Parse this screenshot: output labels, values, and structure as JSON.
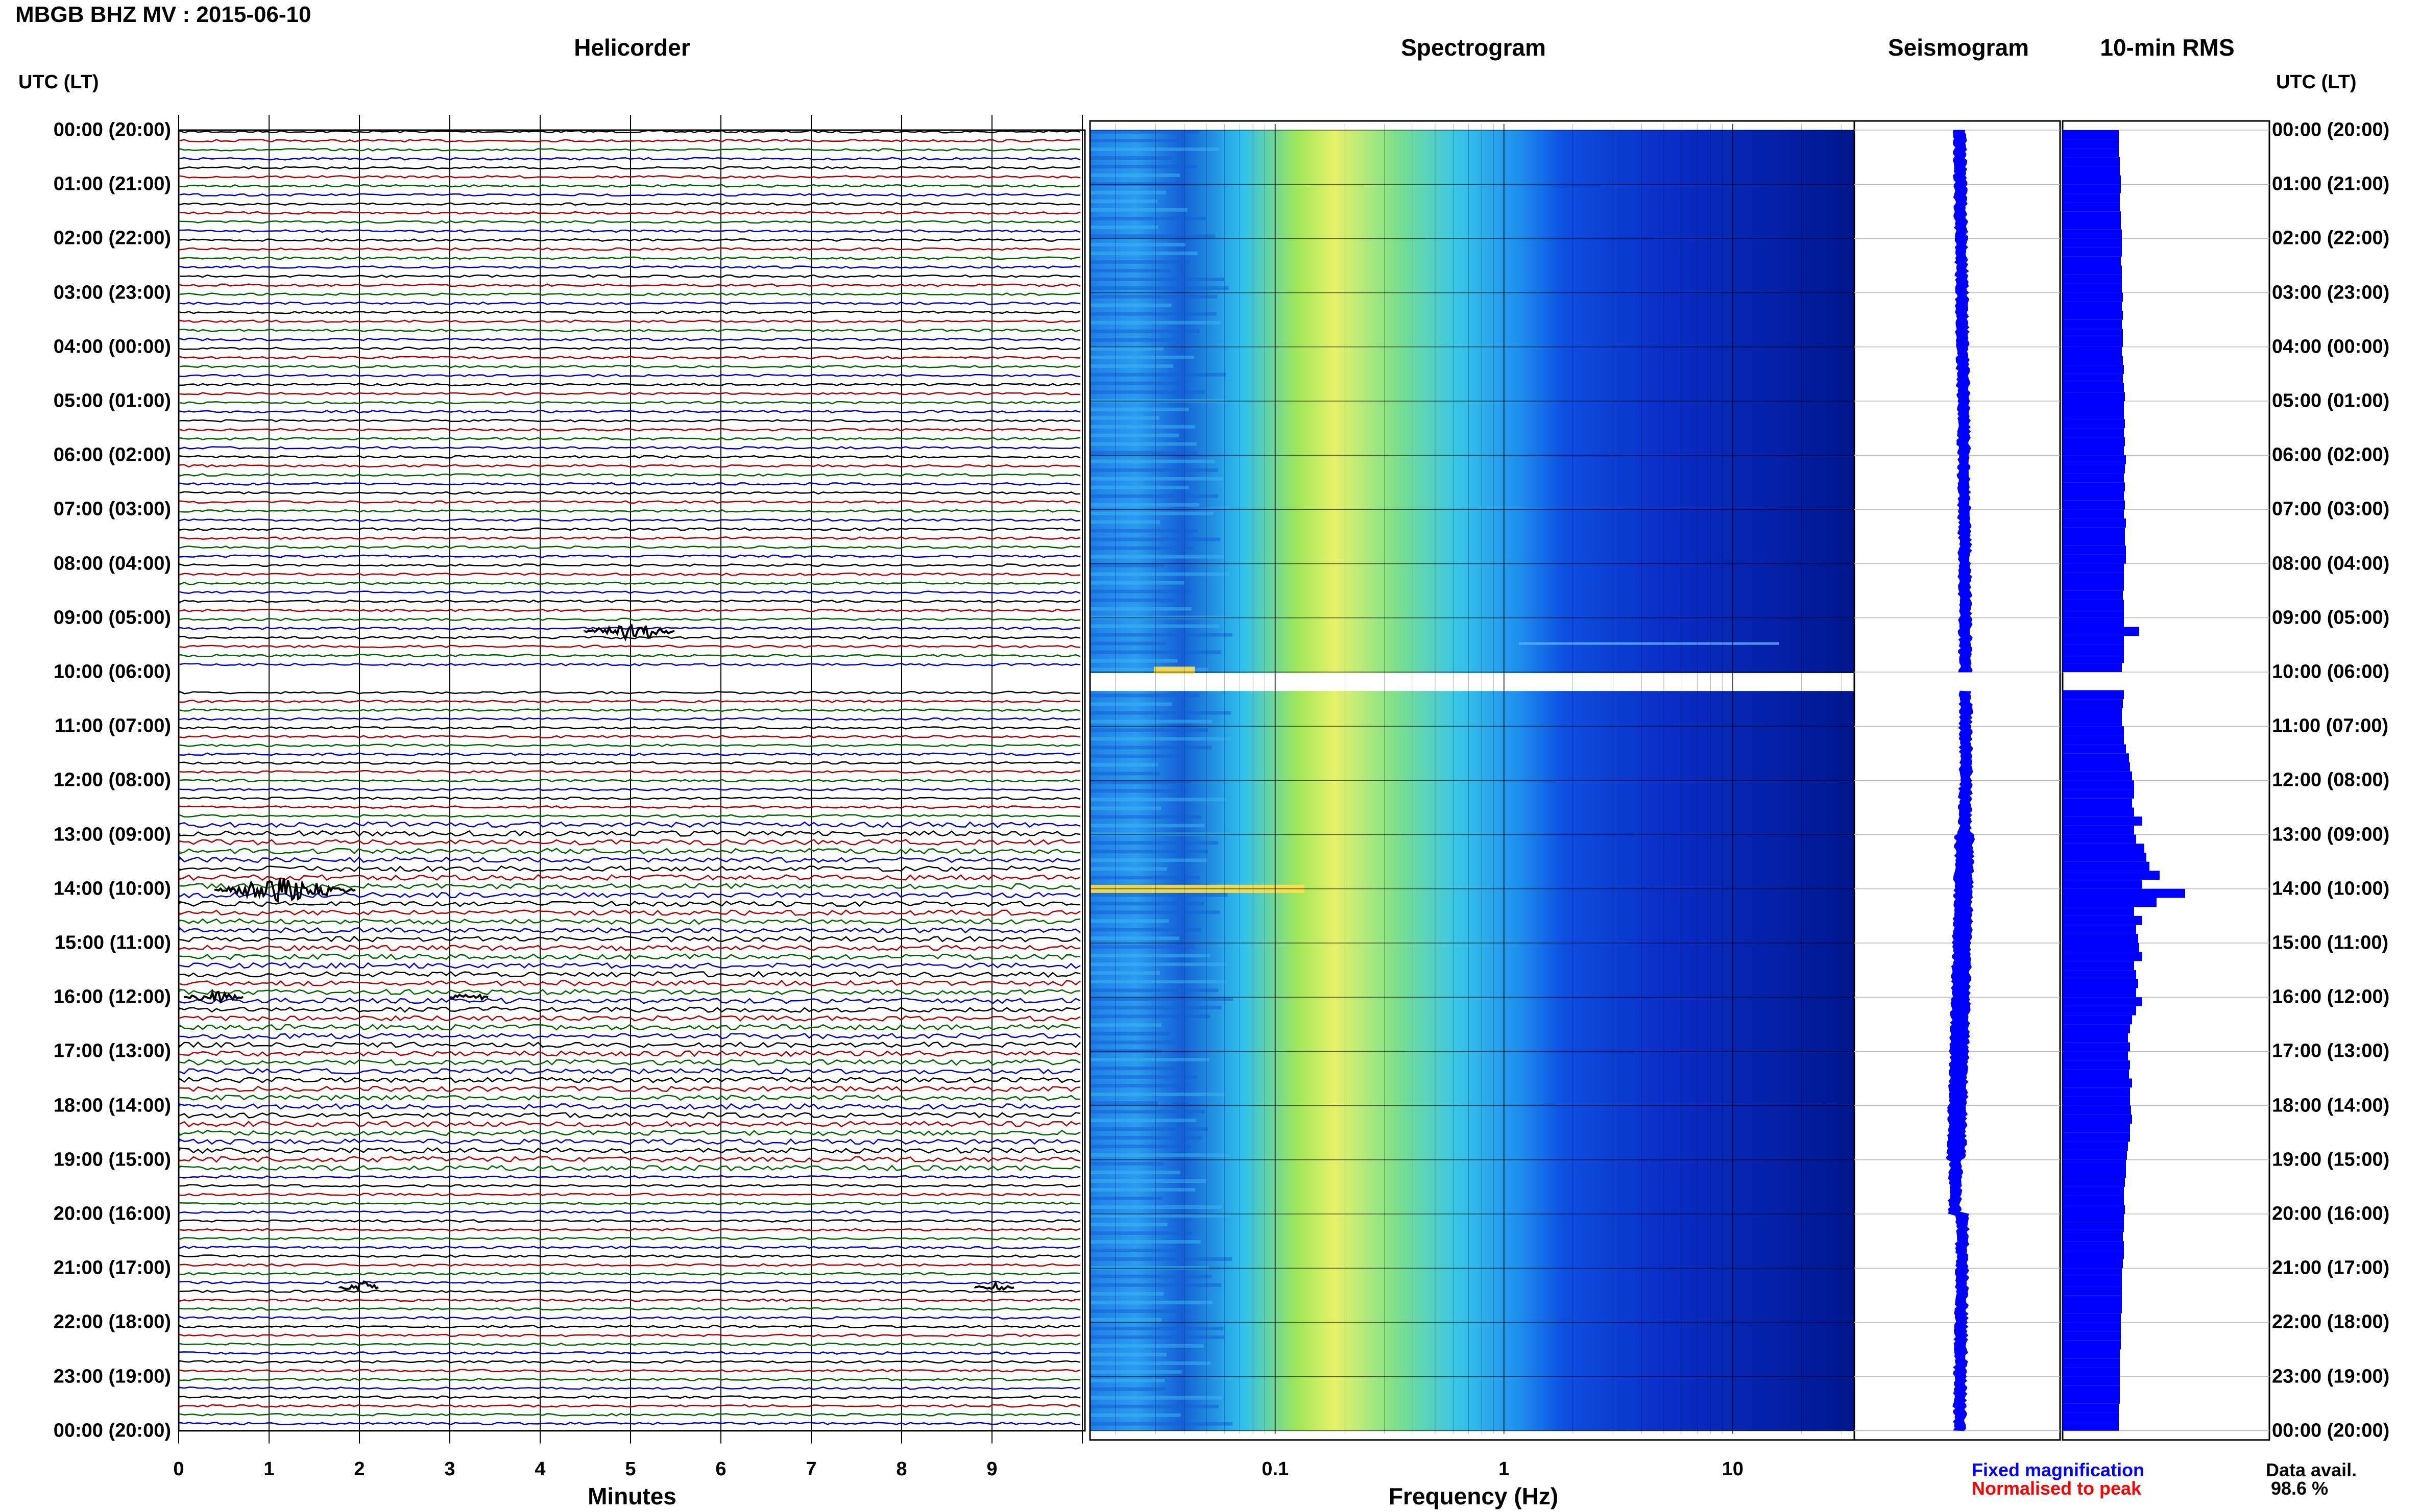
{
  "header": {
    "title": "MBGB BHZ MV : 2015-06-10"
  },
  "panels": {
    "helicorder": "Helicorder",
    "spectrogram": "Spectrogram",
    "seismogram": "Seismogram",
    "rms": "10-min RMS"
  },
  "time_axis": {
    "header_left": "UTC (LT)",
    "header_right": "UTC (LT)",
    "labels": [
      "00:00 (20:00)",
      "01:00 (21:00)",
      "02:00 (22:00)",
      "03:00 (23:00)",
      "04:00 (00:00)",
      "05:00 (01:00)",
      "06:00 (02:00)",
      "07:00 (03:00)",
      "08:00 (04:00)",
      "09:00 (05:00)",
      "10:00 (06:00)",
      "11:00 (07:00)",
      "12:00 (08:00)",
      "13:00 (09:00)",
      "14:00 (10:00)",
      "15:00 (11:00)",
      "16:00 (12:00)",
      "17:00 (13:00)",
      "18:00 (14:00)",
      "19:00 (15:00)",
      "20:00 (16:00)",
      "21:00 (17:00)",
      "22:00 (18:00)",
      "23:00 (19:00)",
      "00:00 (20:00)"
    ]
  },
  "helicorder_axis": {
    "title": "Minutes",
    "ticks": [
      "0",
      "1",
      "2",
      "3",
      "4",
      "5",
      "6",
      "7",
      "8",
      "9"
    ]
  },
  "spectrogram_axis": {
    "title": "Frequency (Hz)",
    "ticks": [
      "0.1",
      "1",
      "10"
    ]
  },
  "legend": {
    "fixed": "Fixed magnification",
    "normalised": "Normalised to peak",
    "fixed_color": "#0000ff",
    "normalised_color": "#ff0000"
  },
  "availability": {
    "label": "Data avail.",
    "value": "98.6 %"
  },
  "colors": {
    "trace_cycle": [
      "#000000",
      "#b00000",
      "#006400",
      "#0000cc"
    ],
    "spectro_low": "#00008b",
    "spectro_high": "#ffff00",
    "rms_bar": "#0000ff"
  },
  "rms_values": [
    0.55,
    0.55,
    0.55,
    0.56,
    0.56,
    0.57,
    0.57,
    0.56,
    0.56,
    0.57,
    0.57,
    0.58,
    0.58,
    0.58,
    0.57,
    0.58,
    0.58,
    0.58,
    0.59,
    0.58,
    0.59,
    0.58,
    0.59,
    0.59,
    0.58,
    0.59,
    0.6,
    0.59,
    0.6,
    0.61,
    0.6,
    0.6,
    0.61,
    0.6,
    0.61,
    0.6,
    0.62,
    0.61,
    0.6,
    0.61,
    0.6,
    0.61,
    0.6,
    0.62,
    0.61,
    0.61,
    0.62,
    0.62,
    0.6,
    0.6,
    0.6,
    0.59,
    0.6,
    0.6,
    0.6,
    0.75,
    0.6,
    0.6,
    0.6,
    0.58,
    0.58,
    0.58,
    0.6,
    0.59,
    0.58,
    0.58,
    0.6,
    0.6,
    0.62,
    0.65,
    0.66,
    0.68,
    0.7,
    0.7,
    0.68,
    0.7,
    0.78,
    0.7,
    0.72,
    0.8,
    0.82,
    0.85,
    0.95,
    0.78,
    1.2,
    0.92,
    0.7,
    0.78,
    0.72,
    0.74,
    0.75,
    0.78,
    0.7,
    0.72,
    0.74,
    0.72,
    0.78,
    0.72,
    0.68,
    0.66,
    0.64,
    0.66,
    0.64,
    0.66,
    0.65,
    0.68,
    0.66,
    0.66,
    0.67,
    0.68,
    0.66,
    0.66,
    0.64,
    0.63,
    0.62,
    0.62,
    0.61,
    0.6,
    0.6,
    0.61,
    0.6,
    0.6,
    0.59,
    0.6,
    0.6,
    0.59,
    0.58,
    0.58,
    0.58,
    0.58,
    0.58,
    0.57,
    0.57,
    0.57,
    0.57,
    0.56,
    0.56,
    0.56,
    0.56,
    0.56,
    0.56,
    0.55,
    0.55,
    0.55
  ]
}
